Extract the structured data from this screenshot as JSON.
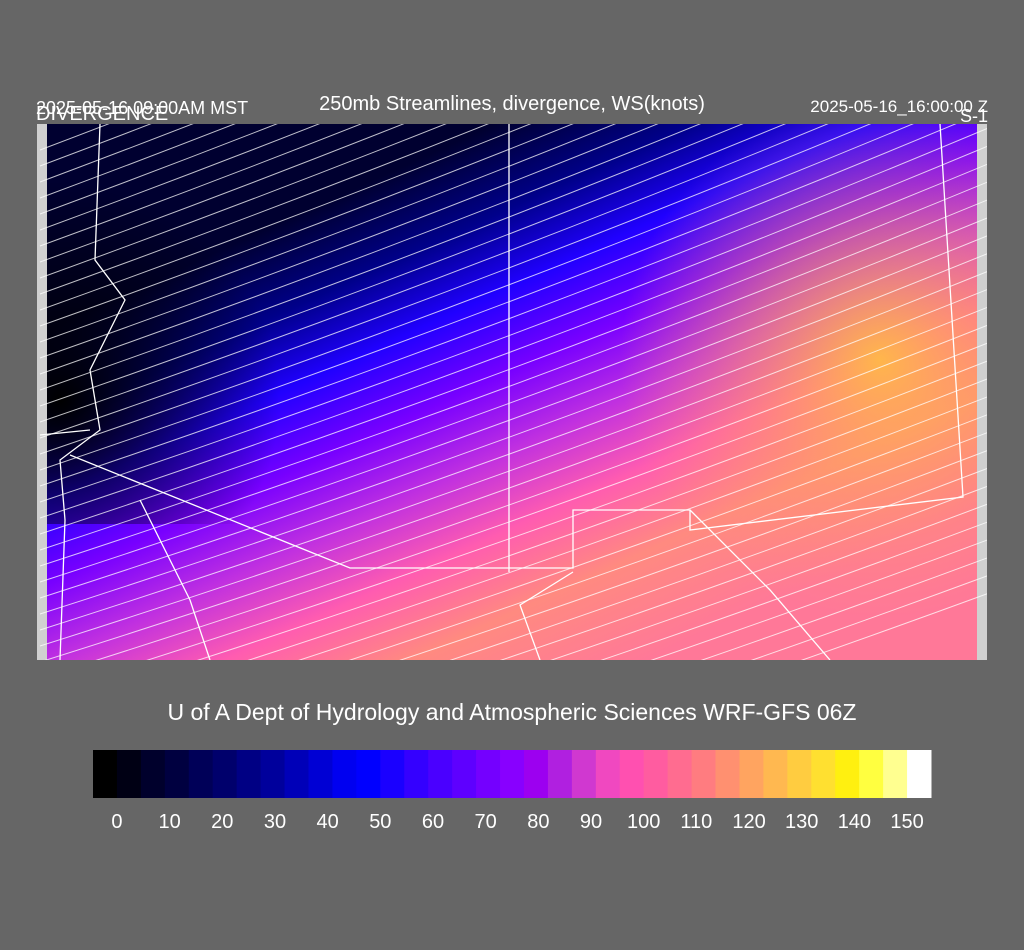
{
  "header": {
    "local_time": "2025-05-16 09:00AM MST",
    "field": "DIVERGENCE",
    "title": "250mb Streamlines, divergence, WS(knots)",
    "valid_time": "2025-05-16_16:00:00 Z",
    "panel": "S-1"
  },
  "credit": "U of A Dept of Hydrology and Atmospheric Sciences WRF-GFS 06Z",
  "colorbar": {
    "ticks": [
      0,
      10,
      20,
      30,
      40,
      50,
      60,
      70,
      80,
      90,
      100,
      110,
      120,
      130,
      140,
      150
    ],
    "colors": [
      "#000000",
      "#000014",
      "#00002c",
      "#000040",
      "#000058",
      "#00006c",
      "#000084",
      "#00009c",
      "#0000b8",
      "#0000d4",
      "#0000f0",
      "#0000ff",
      "#1a00ff",
      "#3400ff",
      "#4a00ff",
      "#5e00ff",
      "#7400ff",
      "#8800ff",
      "#9c00f0",
      "#b020e0",
      "#d038d0",
      "#f048c0",
      "#ff50b0",
      "#ff5ca0",
      "#ff6c90",
      "#ff7c80",
      "#ff9070",
      "#ffa460",
      "#ffb850",
      "#ffcc40",
      "#ffe030",
      "#fff010",
      "#ffff40",
      "#ffff90",
      "#ffffff"
    ]
  }
}
